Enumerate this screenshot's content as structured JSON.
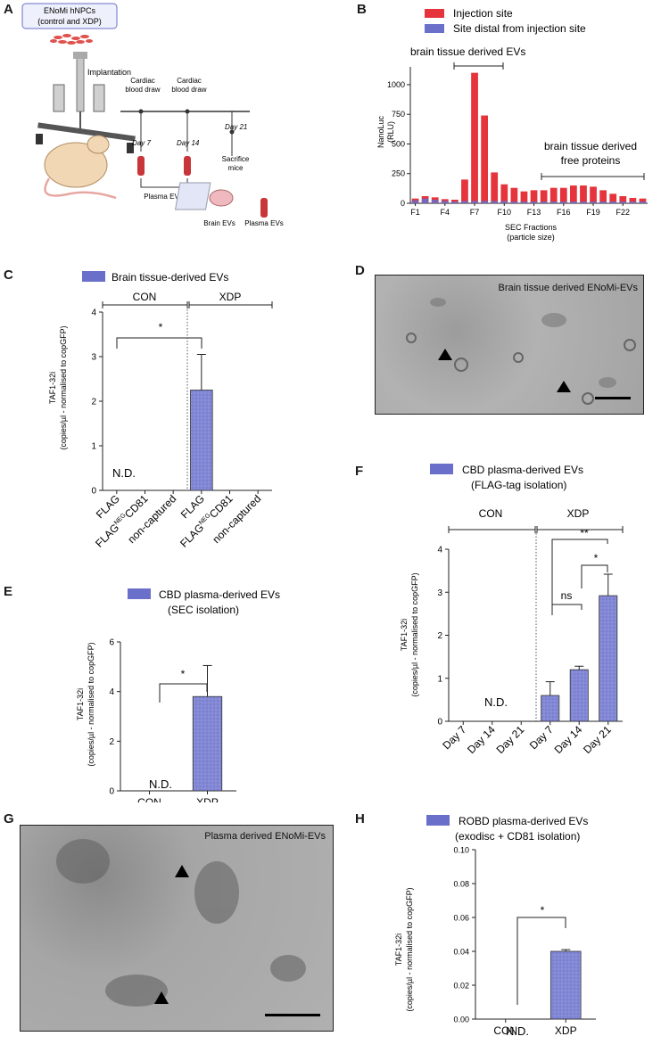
{
  "colors": {
    "bar_blue": "#7b7fd0",
    "bar_red": "#e5343c",
    "legend_blue": "#6a6fc9",
    "axis": "#222222",
    "micro_bg": "#a8a8a8"
  },
  "panels": {
    "A": {
      "letter": "A",
      "box_line1": "ENoMi hNPCs",
      "box_line2": "(control and XDP)",
      "implantation": "Implantation",
      "cardiac1_line1": "Cardiac",
      "cardiac1_line2": "blood draw",
      "cardiac2_line1": "Cardiac",
      "cardiac2_line2": "blood draw",
      "day7": "Day 7",
      "day14": "Day 14",
      "day21": "Day 21",
      "sacrifice_line1": "Sacrifice",
      "sacrifice_line2": "mice",
      "plasma_evs": "Plasma  EVs",
      "brain_evs": "Brain EVs",
      "plasma_evs2": "Plasma  EVs"
    },
    "B": {
      "letter": "B",
      "legend_red": "Injection site",
      "legend_blue": "Site distal from injection site",
      "annot_evs": "brain tissue derived EVs",
      "annot_proteins_line1": "brain tissue derived",
      "annot_proteins_line2": "free proteins",
      "ylabel_line1": "NanoLuc",
      "ylabel_line2": "(RLU)",
      "xlabel_line1": "SEC Fractions",
      "xlabel_line2": "(particle size)"
    },
    "C": {
      "letter": "C",
      "legend": "Brain tissue-derived EVs",
      "group_con": "CON",
      "group_xdp": "XDP",
      "ylabel_line1": "TAF1-32i",
      "ylabel_line2": "(copies/µl - normalised to copGFP)",
      "nd": "N.D.",
      "sig": "*"
    },
    "D": {
      "letter": "D",
      "caption": "Brain tissue derived ENoMi-EVs"
    },
    "E": {
      "letter": "E",
      "legend_line1": "CBD plasma-derived EVs",
      "legend_line2": "(SEC isolation)",
      "ylabel_line1": "TAF1-32i",
      "ylabel_line2": "(copies/µl - normalised to copGFP)",
      "nd": "N.D.",
      "sig": "*"
    },
    "F": {
      "letter": "F",
      "legend_line1": "CBD plasma-derived EVs",
      "legend_line2": "(FLAG-tag isolation)",
      "group_con": "CON",
      "group_xdp": "XDP",
      "ylabel_line1": "TAF1-32i",
      "ylabel_line2": "(copies/µl - normalised to copGFP)",
      "nd": "N.D.",
      "sig_ns": "ns",
      "sig_star": "*",
      "sig_dstar": "**"
    },
    "G": {
      "letter": "G",
      "caption": "Plasma derived ENoMi-EVs"
    },
    "H": {
      "letter": "H",
      "legend_line1": "ROBD plasma-derived EVs",
      "legend_line2": "(exodisc + CD81 isolation)",
      "ylabel_line1": "TAF1-32i",
      "ylabel_line2": "(copies/µl - normalised to copGFP)",
      "nd": "N.D.",
      "sig": "*"
    }
  },
  "chart_data": [
    {
      "panel": "B",
      "type": "bar",
      "ylim": [
        0,
        1150
      ],
      "yticks": [
        0,
        250,
        500,
        750,
        1000
      ],
      "categories": [
        "F1",
        "F2",
        "F3",
        "F4",
        "F5",
        "F6",
        "F7",
        "F8",
        "F9",
        "F10",
        "F11",
        "F12",
        "F13",
        "F14",
        "F15",
        "F16",
        "F17",
        "F18",
        "F19",
        "F20",
        "F21",
        "F22",
        "F23",
        "F24"
      ],
      "xtick_labels": [
        "F1",
        "F4",
        "F7",
        "F10",
        "F13",
        "F16",
        "F19",
        "F22"
      ],
      "series": [
        {
          "name": "Injection site",
          "values": [
            40,
            60,
            50,
            35,
            30,
            200,
            1100,
            740,
            260,
            160,
            130,
            100,
            110,
            110,
            130,
            130,
            150,
            150,
            140,
            110,
            80,
            60,
            45,
            40
          ]
        },
        {
          "name": "Site distal from injection site",
          "values": [
            25,
            40,
            30,
            20,
            15,
            20,
            20,
            20,
            20,
            20,
            15,
            15,
            15,
            15,
            15,
            15,
            15,
            15,
            15,
            15,
            15,
            15,
            15,
            15
          ]
        }
      ]
    },
    {
      "panel": "C",
      "type": "bar",
      "ylim": [
        0,
        4
      ],
      "yticks": [
        0,
        1,
        2,
        3,
        4
      ],
      "categories": [
        "FLAG",
        "FLAG^NEG CD81",
        "non-captured",
        "FLAG",
        "FLAG^NEG CD81",
        "non-captured"
      ],
      "values": [
        0,
        0,
        0,
        2.25,
        0,
        0
      ],
      "errors": [
        0,
        0,
        0,
        0.8,
        0,
        0
      ]
    },
    {
      "panel": "E",
      "type": "bar",
      "ylim": [
        0,
        6
      ],
      "yticks": [
        0,
        2,
        4,
        6
      ],
      "categories": [
        "CON",
        "XDP"
      ],
      "values": [
        0,
        3.8
      ],
      "errors": [
        0,
        1.25
      ]
    },
    {
      "panel": "F",
      "type": "bar",
      "ylim": [
        0,
        4
      ],
      "yticks": [
        0,
        1,
        2,
        3,
        4
      ],
      "categories": [
        "Day 7",
        "Day 14",
        "Day 21",
        "Day 7",
        "Day 14",
        "Day 21"
      ],
      "values": [
        0,
        0,
        0,
        0.6,
        1.2,
        2.92
      ],
      "errors": [
        0,
        0,
        0,
        0.32,
        0.08,
        0.5
      ]
    },
    {
      "panel": "H",
      "type": "bar",
      "ylim": [
        0,
        0.1
      ],
      "yticks": [
        0.0,
        0.02,
        0.04,
        0.06,
        0.08,
        0.1
      ],
      "ytick_labels": [
        "0.00",
        "0.02",
        "0.04",
        "0.06",
        "0.08",
        "0.10"
      ],
      "categories": [
        "CON",
        "XDP"
      ],
      "values": [
        0,
        0.04
      ],
      "errors": [
        0,
        0.001
      ]
    }
  ]
}
